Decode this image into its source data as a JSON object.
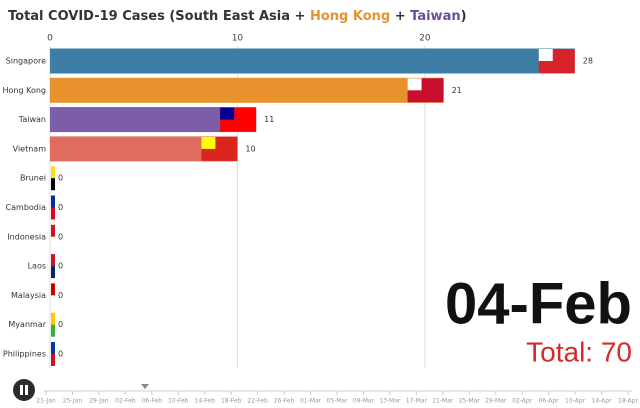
{
  "chart_data": {
    "type": "bar",
    "orientation": "horizontal",
    "title": [
      {
        "text": "Total COVID-19 Cases (South East Asia + ",
        "color": "#333333"
      },
      {
        "text": "Hong Kong",
        "color": "#e8922e"
      },
      {
        "text": " + ",
        "color": "#333333"
      },
      {
        "text": "Taiwan",
        "color": "#6a4c9c"
      },
      {
        "text": ")",
        "color": "#333333"
      }
    ],
    "categories": [
      "Singapore",
      "Hong Kong",
      "Taiwan",
      "Vietnam",
      "Brunei",
      "Cambodia",
      "Indonesia",
      "Laos",
      "Malaysia",
      "Myanmar",
      "Philippines"
    ],
    "values": [
      28,
      21,
      11,
      10,
      0,
      0,
      0,
      0,
      0,
      0,
      0
    ],
    "colors": [
      "#3d7ea6",
      "#e8922e",
      "#7b5ea7",
      "#e06b5e",
      "#999999",
      "#999999",
      "#999999",
      "#999999",
      "#999999",
      "#999999",
      "#999999"
    ],
    "xlim": [
      0,
      31
    ],
    "xticks": [
      0,
      10,
      20
    ],
    "grid": true,
    "date_label": "04-Feb",
    "total_label": "Total: 70",
    "timeline_labels": [
      "21-Jan",
      "25-Jan",
      "29-Jan",
      "02-Feb",
      "06-Feb",
      "10-Feb",
      "14-Feb",
      "18-Feb",
      "22-Feb",
      "26-Feb",
      "01-Mar",
      "05-Mar",
      "09-Mar",
      "13-Mar",
      "17-Mar",
      "21-Mar",
      "25-Mar",
      "29-Mar",
      "02-Apr",
      "06-Apr",
      "10-Apr",
      "14-Apr",
      "18-Apr"
    ]
  }
}
